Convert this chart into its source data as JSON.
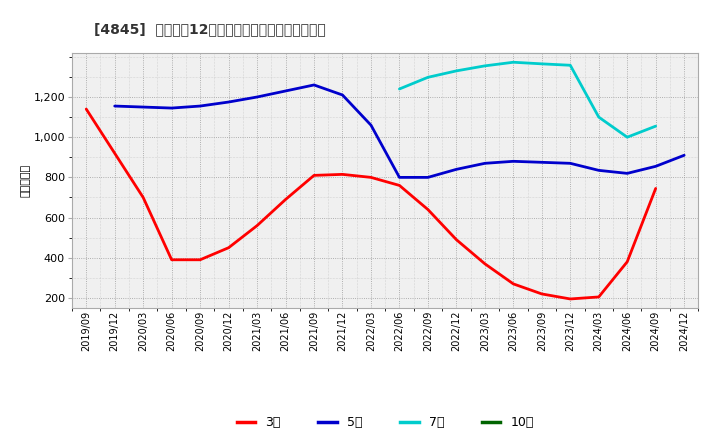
{
  "title": "[4845]  経常利益12か月移動合計の標準偏差の推移",
  "ylabel": "（百万円）",
  "background_color": "#ffffff",
  "plot_bg_color": "#f0f0f0",
  "grid_color": "#999999",
  "ylim": [
    150,
    1420
  ],
  "yticks": [
    200,
    400,
    600,
    800,
    1000,
    1200
  ],
  "series": {
    "3年": {
      "color": "#ff0000",
      "dates": [
        "2019/09",
        "2019/12",
        "2020/03",
        "2020/06",
        "2020/09",
        "2020/12",
        "2021/03",
        "2021/06",
        "2021/09",
        "2021/12",
        "2022/03",
        "2022/06",
        "2022/09",
        "2022/12",
        "2023/03",
        "2023/06",
        "2023/09",
        "2023/12",
        "2024/03",
        "2024/06",
        "2024/09"
      ],
      "values": [
        1140,
        920,
        700,
        390,
        390,
        450,
        560,
        690,
        810,
        815,
        800,
        760,
        640,
        490,
        370,
        270,
        220,
        195,
        205,
        380,
        745
      ]
    },
    "5年": {
      "color": "#0000cc",
      "dates": [
        "2019/12",
        "2020/03",
        "2020/06",
        "2020/09",
        "2020/12",
        "2021/03",
        "2021/06",
        "2021/09",
        "2021/12",
        "2022/03",
        "2022/06",
        "2022/09",
        "2022/12",
        "2023/03",
        "2023/06",
        "2023/09",
        "2023/12",
        "2024/03",
        "2024/06",
        "2024/09",
        "2024/12"
      ],
      "values": [
        1155,
        1150,
        1145,
        1155,
        1175,
        1200,
        1230,
        1260,
        1210,
        1060,
        800,
        800,
        840,
        870,
        880,
        875,
        870,
        835,
        820,
        855,
        910
      ]
    },
    "7年": {
      "color": "#00cccc",
      "dates": [
        "2022/06",
        "2022/09",
        "2022/12",
        "2023/03",
        "2023/06",
        "2023/09",
        "2023/12",
        "2024/03",
        "2024/06",
        "2024/09"
      ],
      "values": [
        1240,
        1298,
        1330,
        1355,
        1373,
        1365,
        1358,
        1100,
        1000,
        1055
      ]
    },
    "10年": {
      "color": "#006400",
      "dates": [],
      "values": []
    }
  },
  "xtick_labels": [
    "2019/09",
    "2019/12",
    "2020/03",
    "2020/06",
    "2020/09",
    "2020/12",
    "2021/03",
    "2021/06",
    "2021/09",
    "2021/12",
    "2022/03",
    "2022/06",
    "2022/09",
    "2022/12",
    "2023/03",
    "2023/06",
    "2023/09",
    "2023/12",
    "2024/03",
    "2024/06",
    "2024/09",
    "2024/12"
  ],
  "legend_labels": [
    "3年",
    "5年",
    "7年",
    "10年"
  ],
  "legend_colors": [
    "#ff0000",
    "#0000cc",
    "#00cccc",
    "#006400"
  ]
}
